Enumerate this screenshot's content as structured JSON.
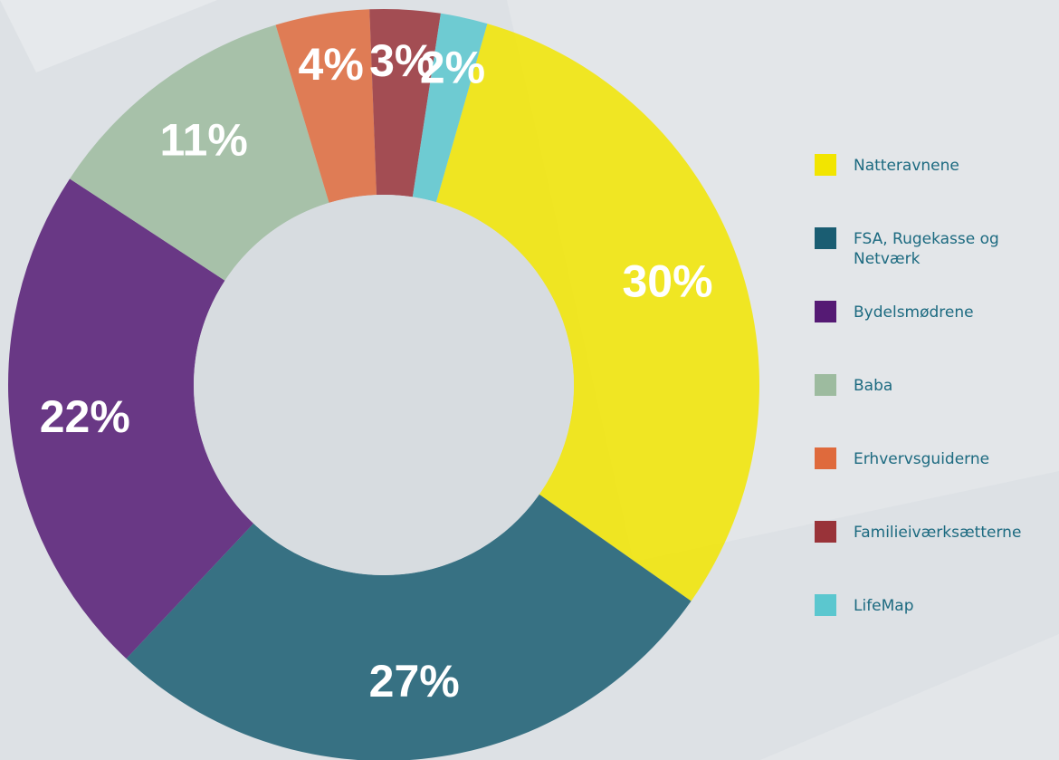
{
  "chart_data": {
    "type": "donut",
    "categories": [
      "Natteravnene",
      "FSA, Rugekasse og Netværk",
      "Bydelsmødrene",
      "Baba",
      "Erhvervsguiderne",
      "Familieiværksætterne",
      "LifeMap"
    ],
    "values": [
      30,
      27,
      22,
      11,
      4,
      3,
      2
    ],
    "value_labels": [
      "30%",
      "27%",
      "22%",
      "11%",
      "4%",
      "3%",
      "2%"
    ],
    "colors": [
      "#f2e500",
      "#1a5d72",
      "#551a74",
      "#9dbb9f",
      "#df6a3c",
      "#993339",
      "#5bc7cf"
    ],
    "legend": "right"
  }
}
